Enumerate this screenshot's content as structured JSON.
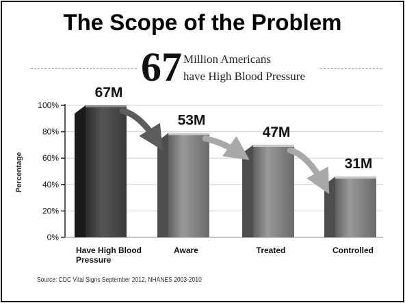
{
  "title": "The Scope of the Problem",
  "headline": {
    "number": "67",
    "line1": "Million Americans",
    "line2": "have High Blood Pressure"
  },
  "source": "Source: CDC Vital Signs September 2012, NHANES 2003-2010",
  "colors": {
    "bar": "#7a7a7a",
    "arrow": "#5c5c5c",
    "grid": "#cfcfcf"
  },
  "chart_data": {
    "type": "bar",
    "ylabel": "Percentage",
    "ylim": [
      0,
      100
    ],
    "yticks": [
      "0%",
      "20%",
      "40%",
      "60%",
      "80%",
      "100%"
    ],
    "categories": [
      "Have High Blood Pressure",
      "Aware",
      "Treated",
      "Controlled"
    ],
    "category_lines": [
      [
        "Have High Blood",
        "Pressure"
      ],
      [
        "Aware"
      ],
      [
        "Treated"
      ],
      [
        "Controlled"
      ]
    ],
    "values": [
      100,
      79,
      70,
      46
    ],
    "data_labels": [
      "67M",
      "53M",
      "47M",
      "31M"
    ],
    "grid": true,
    "annotations": "arrows connecting successive bars"
  }
}
